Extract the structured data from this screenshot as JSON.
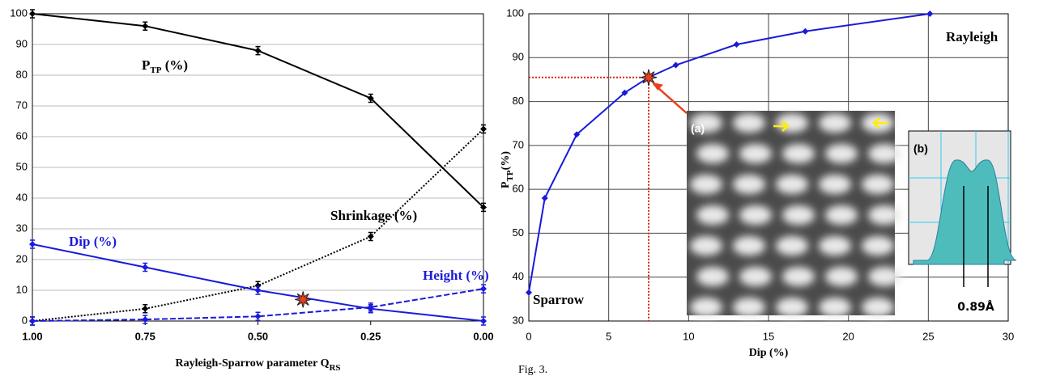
{
  "chart_data": [
    {
      "type": "line",
      "xlabel": "Rayleigh-Sparrow parameter Q",
      "xlabel_sub": "RS",
      "x": [
        1,
        0.75,
        0.5,
        0.25,
        0
      ],
      "xlim": [
        1,
        0
      ],
      "xticks": [
        {
          "value": 1,
          "label": "1.00"
        },
        {
          "value": 0.75,
          "label": "0.75"
        },
        {
          "value": 0.5,
          "label": "0.50"
        },
        {
          "value": 0.25,
          "label": "0.25"
        },
        {
          "value": 0,
          "label": "0.00"
        }
      ],
      "ylim": [
        0,
        100
      ],
      "yticks": [
        0,
        10,
        20,
        30,
        40,
        50,
        60,
        70,
        80,
        90,
        100
      ],
      "grid": true,
      "series": [
        {
          "name": "P",
          "name_sub": "TP",
          "name_suffix": " (%)",
          "color": "#000000",
          "style": "solid",
          "values": [
            100,
            96,
            88,
            72.5,
            37
          ]
        },
        {
          "name": "Shrinkage (%)",
          "color": "#000000",
          "style": "dotted",
          "values": [
            0,
            4,
            11.5,
            27.5,
            62.5
          ]
        },
        {
          "name": "Dip (%)",
          "color": "#1a1adc",
          "style": "solid",
          "values": [
            25,
            17.5,
            10,
            4,
            0
          ]
        },
        {
          "name": "Height (%)",
          "color": "#1a1adc",
          "style": "dashed",
          "values": [
            0,
            0.5,
            1.5,
            4.5,
            10.5
          ]
        }
      ],
      "marker": {
        "x": 0.4,
        "y": 7,
        "color": "#e8401c"
      }
    },
    {
      "type": "line",
      "xlabel": "Dip (%)",
      "ylabel": "P",
      "ylabel_sub": "TP",
      "ylabel_suffix": "(%)",
      "x": [
        0,
        1,
        3,
        6,
        7.5,
        9.2,
        13,
        17.3,
        25.1
      ],
      "xlim": [
        0,
        30
      ],
      "xticks": [
        0,
        5,
        10,
        15,
        20,
        25,
        30
      ],
      "ylim": [
        30,
        100
      ],
      "yticks": [
        30,
        40,
        50,
        60,
        70,
        80,
        90,
        100
      ],
      "grid": true,
      "series": [
        {
          "color": "#1a1adc",
          "style": "solid",
          "values": [
            36.5,
            58,
            72.5,
            82,
            85.5,
            88.3,
            93,
            96,
            100
          ]
        }
      ],
      "marker": {
        "x": 7.5,
        "y": 85.5,
        "color": "#e8401c"
      },
      "annotations": [
        "Rayleigh",
        "Sparrow"
      ],
      "insets": {
        "a_label": "(a)",
        "b_label": "(b)",
        "b_value": "0.89Å"
      }
    }
  ],
  "caption": "Fig. 3."
}
